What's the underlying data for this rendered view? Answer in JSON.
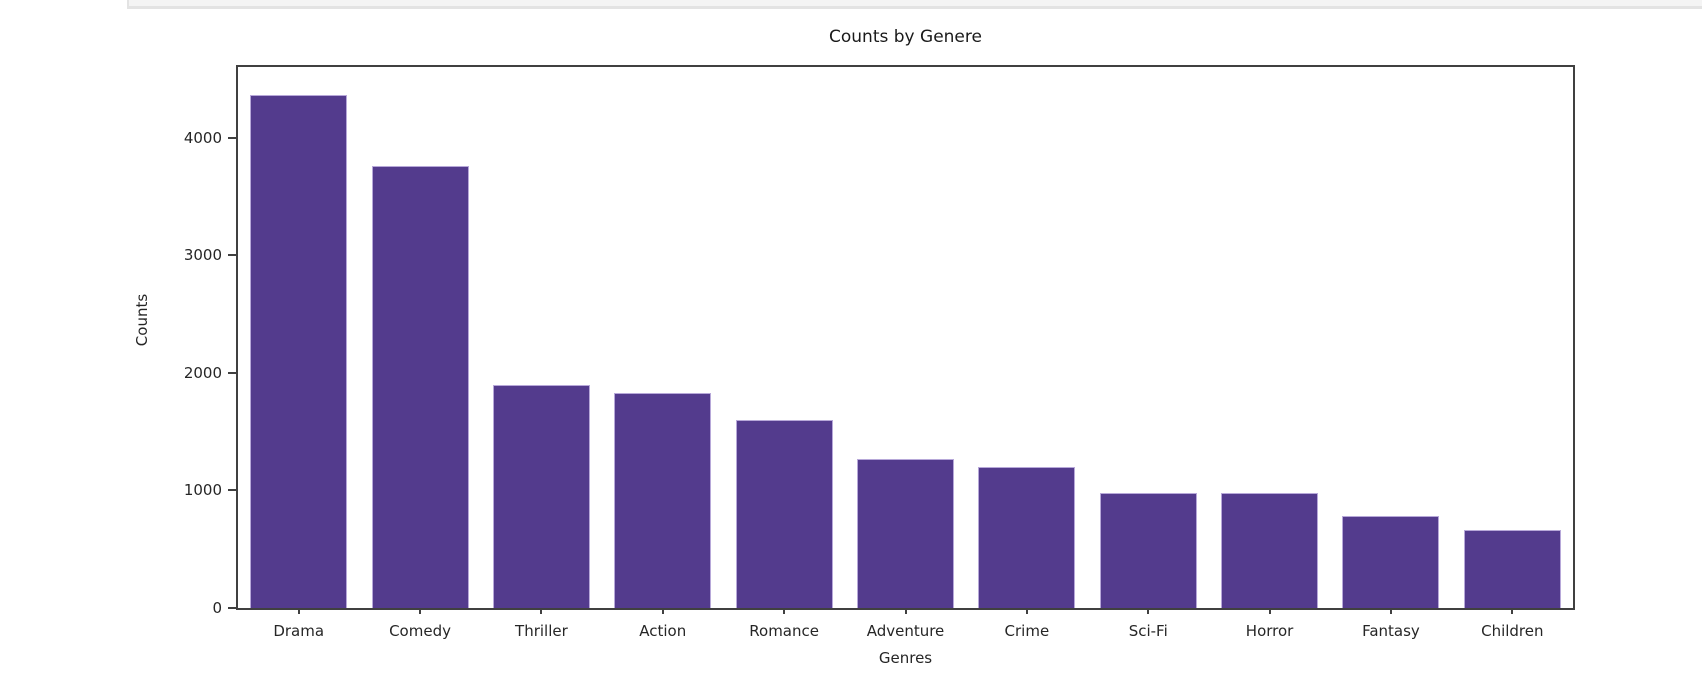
{
  "page": {
    "background": "#ffffff",
    "cell_edge": {
      "fill": "#f4f4f4",
      "border": "#e3e3e3"
    }
  },
  "chart_data": {
    "type": "bar",
    "title": "Counts by Genere",
    "xlabel": "Genres",
    "ylabel": "Counts",
    "categories": [
      "Drama",
      "Comedy",
      "Thriller",
      "Action",
      "Romance",
      "Adventure",
      "Crime",
      "Sci-Fi",
      "Horror",
      "Fantasy",
      "Children"
    ],
    "values": [
      4361,
      3756,
      1894,
      1828,
      1596,
      1263,
      1199,
      980,
      978,
      779,
      664
    ],
    "yticks": [
      0,
      1000,
      2000,
      3000,
      4000
    ],
    "ylim": [
      0,
      4600
    ],
    "bar_color": "#533b8d",
    "bar_width_fraction": 0.8,
    "grid": false,
    "legend_position": "none",
    "text_color": "#262626",
    "spine_color": "#404040"
  }
}
